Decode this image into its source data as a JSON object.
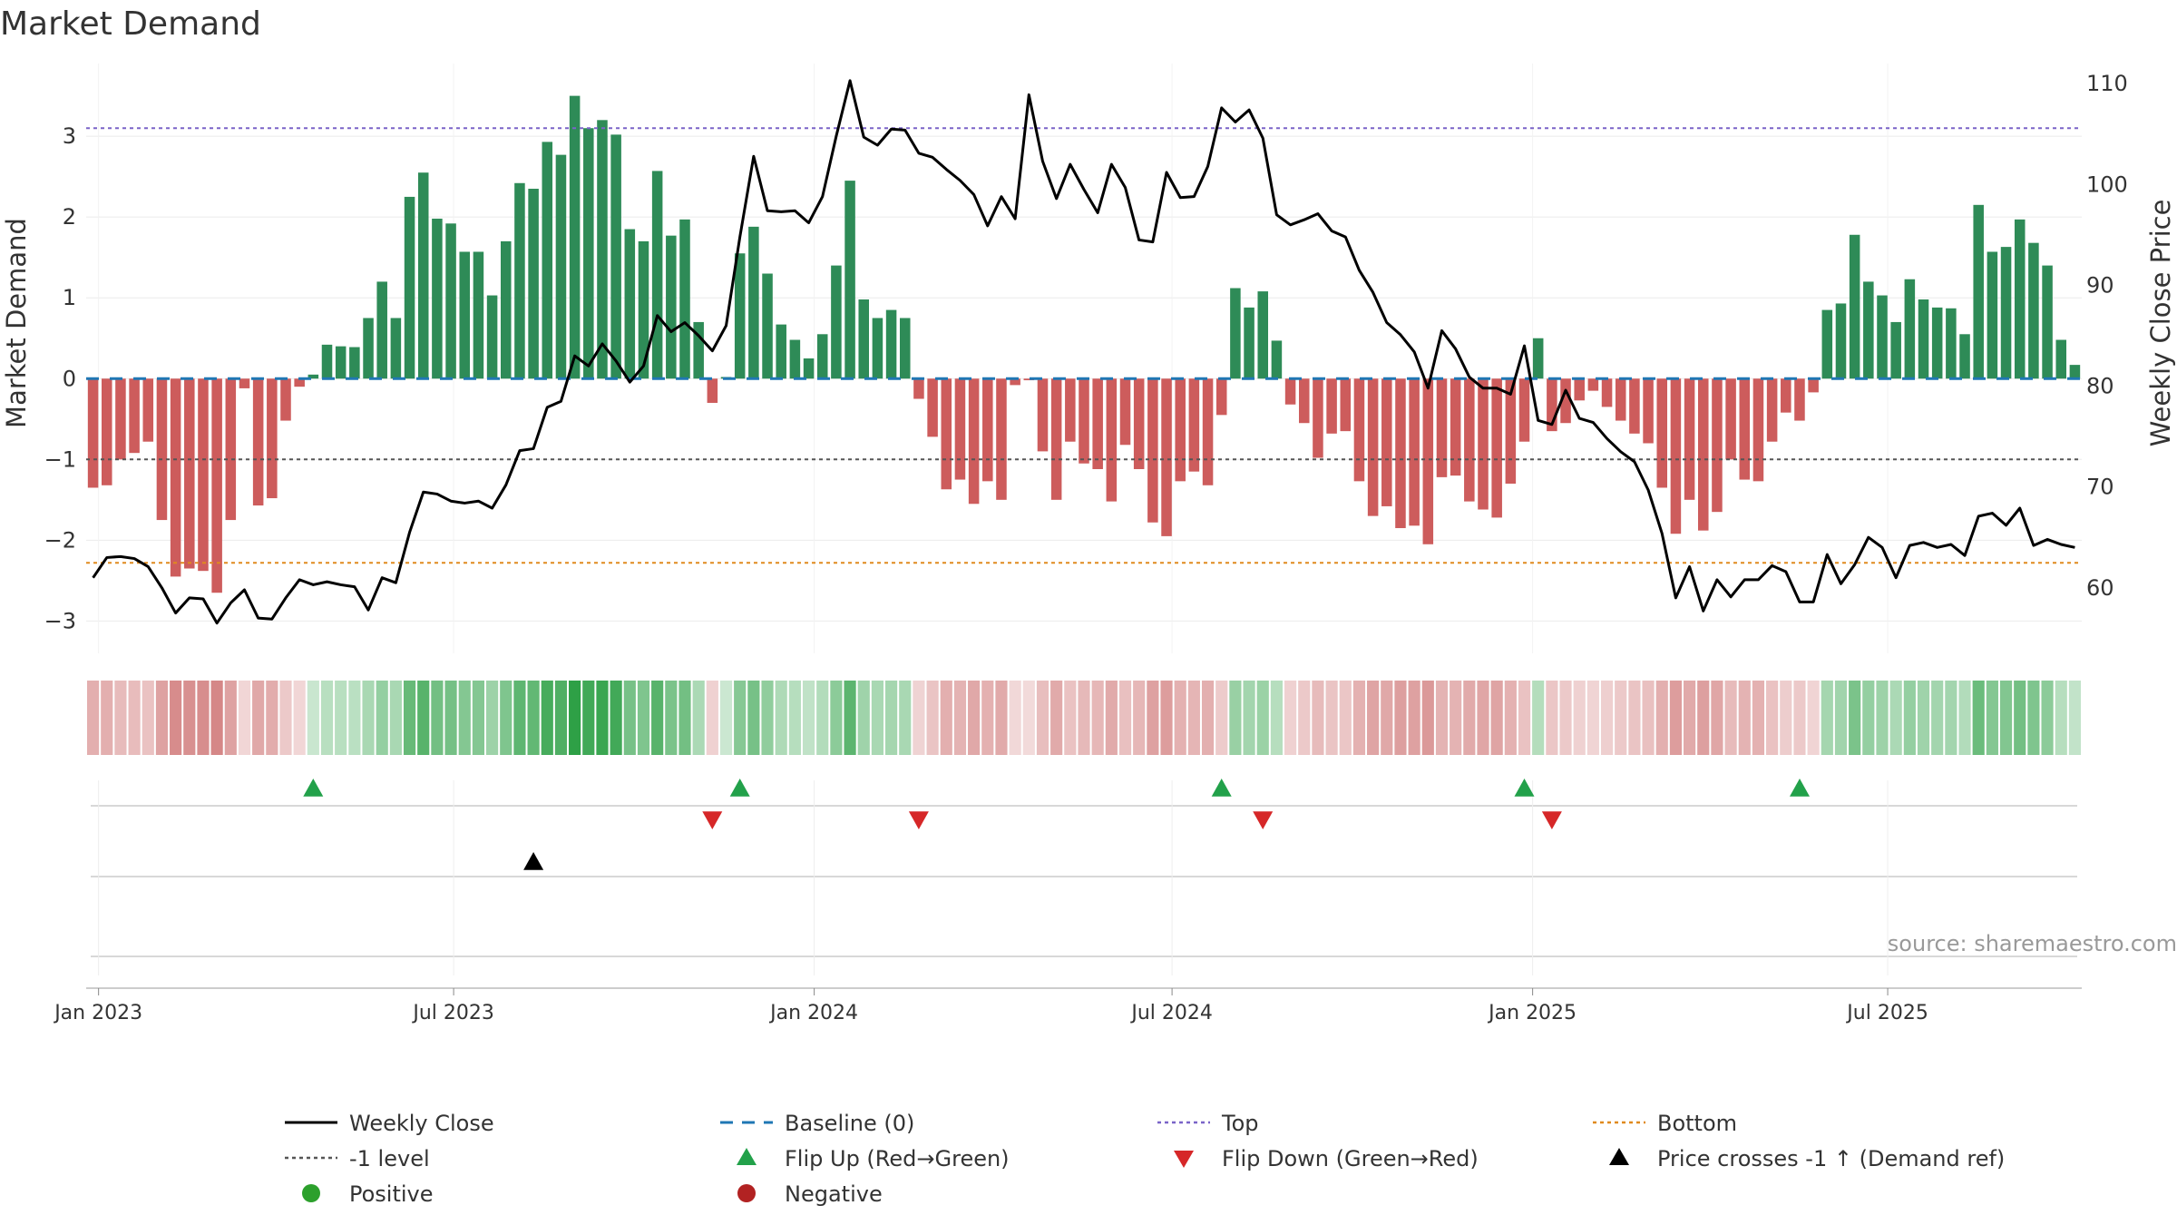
{
  "chart_data": {
    "type": "bar",
    "title": "Market Demand",
    "ylabel": "Market Demand",
    "y2label": "Weekly Close Price",
    "ylim": [
      -3.4,
      3.9
    ],
    "y2lim": [
      53.5,
      112
    ],
    "yticks": [
      -3,
      -2,
      -1,
      0,
      1,
      2,
      3
    ],
    "y2ticks": [
      60,
      70,
      80,
      90,
      100,
      110
    ],
    "x_start_week_offset": 0,
    "x_ticks": [
      {
        "label": "Jan 2023",
        "week": 0.9
      },
      {
        "label": "Jul 2023",
        "week": 26.7
      },
      {
        "label": "Jan 2024",
        "week": 52.9
      },
      {
        "label": "Jul 2024",
        "week": 78.9
      },
      {
        "label": "Jan 2025",
        "week": 105.1
      },
      {
        "label": "Jul 2025",
        "week": 130.9
      }
    ],
    "reference_lines": {
      "top": 3.1,
      "bottom": -2.28,
      "minus_one": -1,
      "baseline": 0
    },
    "series": [
      {
        "name": "Market Demand",
        "values": [
          -1.35,
          -1.32,
          -1.0,
          -0.92,
          -0.78,
          -1.75,
          -2.45,
          -2.35,
          -2.38,
          -2.65,
          -1.75,
          -0.12,
          -1.57,
          -1.48,
          -0.52,
          -0.1,
          0.05,
          0.42,
          0.4,
          0.39,
          0.75,
          1.2,
          0.75,
          2.25,
          2.55,
          1.98,
          1.92,
          1.57,
          1.57,
          1.03,
          1.7,
          2.42,
          2.35,
          2.93,
          2.77,
          3.5,
          3.1,
          3.2,
          3.02,
          1.85,
          1.7,
          2.57,
          1.77,
          1.97,
          0.7,
          -0.3,
          0.02,
          1.55,
          1.88,
          1.3,
          0.67,
          0.48,
          0.25,
          0.55,
          1.4,
          2.45,
          0.98,
          0.75,
          0.85,
          0.75,
          -0.25,
          -0.72,
          -1.37,
          -1.25,
          -1.55,
          -1.27,
          -1.5,
          -0.08,
          -0.02,
          -0.9,
          -1.5,
          -0.78,
          -1.05,
          -1.12,
          -1.52,
          -0.82,
          -1.12,
          -1.78,
          -1.95,
          -1.27,
          -1.15,
          -1.32,
          -0.45,
          1.12,
          0.88,
          1.08,
          0.47,
          -0.32,
          -0.55,
          -0.98,
          -0.68,
          -0.65,
          -1.27,
          -1.7,
          -1.58,
          -1.85,
          -1.82,
          -2.05,
          -1.22,
          -1.2,
          -1.52,
          -1.62,
          -1.72,
          -1.3,
          -0.78,
          0.5,
          -0.65,
          -0.55,
          -0.27,
          -0.15,
          -0.35,
          -0.52,
          -0.68,
          -0.8,
          -1.35,
          -1.92,
          -1.5,
          -1.88,
          -1.65,
          -1.0,
          -1.25,
          -1.27,
          -0.78,
          -0.42,
          -0.52,
          -0.17,
          0.85,
          0.93,
          1.78,
          1.2,
          1.03,
          0.7,
          1.23,
          0.98,
          0.88,
          0.87,
          0.55,
          2.15,
          1.57,
          1.63,
          1.97,
          1.68,
          1.4,
          0.48,
          0.17
        ]
      },
      {
        "name": "Weekly Close",
        "values": [
          61.0,
          63.0,
          63.1,
          62.9,
          62.1,
          60.0,
          57.5,
          59.0,
          58.9,
          56.5,
          58.5,
          59.8,
          57.0,
          56.9,
          59.0,
          60.8,
          60.3,
          60.6,
          60.3,
          60.1,
          57.8,
          61.0,
          60.5,
          65.5,
          69.5,
          69.3,
          68.6,
          68.4,
          68.6,
          67.9,
          70.2,
          73.6,
          73.8,
          77.9,
          78.5,
          83.0,
          82.0,
          84.2,
          82.5,
          80.4,
          82.0,
          87.0,
          85.4,
          86.3,
          85.0,
          83.5,
          86.0,
          94.8,
          102.8,
          97.4,
          97.3,
          97.4,
          96.2,
          98.8,
          104.8,
          110.3,
          104.7,
          103.9,
          105.5,
          105.4,
          103.1,
          102.7,
          101.5,
          100.4,
          99.0,
          95.9,
          98.8,
          96.6,
          108.9,
          102.3,
          98.6,
          102.0,
          99.5,
          97.2,
          102.0,
          99.7,
          94.5,
          94.3,
          101.2,
          98.7,
          98.8,
          101.8,
          107.6,
          106.2,
          107.4,
          104.6,
          97.0,
          96.0,
          96.5,
          97.1,
          95.4,
          94.8,
          91.5,
          89.3,
          86.3,
          85.1,
          83.4,
          79.8,
          85.5,
          83.7,
          80.9,
          79.8,
          79.8,
          79.2,
          84.0,
          76.6,
          76.2,
          79.6,
          76.8,
          76.4,
          74.8,
          73.5,
          72.5,
          69.7,
          65.4,
          59.0,
          62.1,
          57.7,
          60.8,
          59.1,
          60.8,
          60.8,
          62.2,
          61.6,
          58.6,
          58.6,
          63.3,
          60.4,
          62.3,
          65.0,
          64.0,
          61.0,
          64.2,
          64.5,
          64.0,
          64.3,
          63.2,
          67.1,
          67.4,
          66.2,
          67.9,
          64.2,
          64.8,
          64.3,
          64.0
        ]
      }
    ],
    "flips_up": [
      16,
      47,
      82,
      104,
      124
    ],
    "flips_down": [
      45,
      60,
      85,
      106
    ],
    "price_cross": [
      32
    ],
    "legend": {
      "placement": "bottom-center",
      "items": [
        {
          "label": "Weekly Close",
          "kind": "line",
          "color": "#000000"
        },
        {
          "label": "Baseline (0)",
          "kind": "dashed",
          "color": "#1f77b4"
        },
        {
          "label": "Top",
          "kind": "dotted",
          "color": "#7a64c8"
        },
        {
          "label": "Bottom",
          "kind": "dotted",
          "color": "#e08a1e"
        },
        {
          "label": "-1 level",
          "kind": "dotted",
          "color": "#555555"
        },
        {
          "label": "Flip Up (Red→Green)",
          "kind": "triangle-up",
          "color": "#22a14a"
        },
        {
          "label": "Flip Down (Green→Red)",
          "kind": "triangle-down",
          "color": "#d62728"
        },
        {
          "label": "Price crosses -1 ↑ (Demand ref)",
          "kind": "triangle-up",
          "color": "#000000"
        },
        {
          "label": "Positive",
          "kind": "circle",
          "color": "#2ca02c"
        },
        {
          "label": "Negative",
          "kind": "circle",
          "color": "#b22222"
        }
      ]
    },
    "colors": {
      "positive": "#2e8b57",
      "negative": "#cd5c5c"
    }
  },
  "source": "source: sharemaestro.com"
}
